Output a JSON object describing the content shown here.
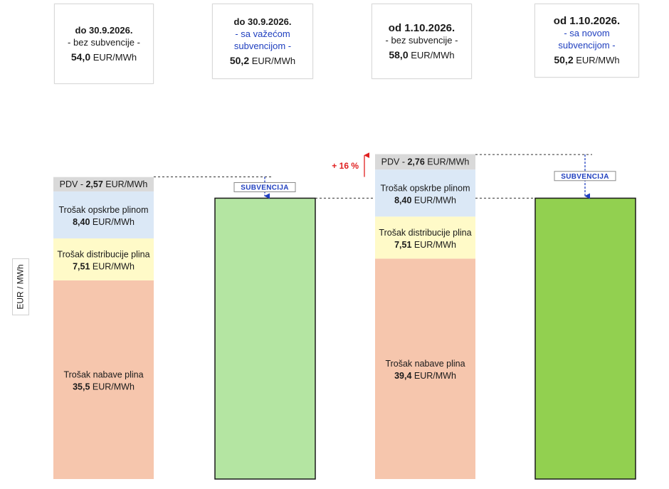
{
  "header": {
    "boxes": [
      {
        "period": "do 30.9.2026.",
        "note": "- bez subvencije -",
        "note_color": "#1a1a1a",
        "value": "54,0",
        "unit": "EUR/MWh"
      },
      {
        "period": "do 30.9.2026.",
        "note": "- sa važećom subvencijom -",
        "note_color": "#1f3fbf",
        "value": "50,2",
        "unit": "EUR/MWh"
      },
      {
        "period": "od 1.10.2026.",
        "note": "- bez subvencije -",
        "note_color": "#1a1a1a",
        "value": "58,0",
        "unit": "EUR/MWh"
      },
      {
        "period": "od 1.10.2026.",
        "note": "- sa novom subvencijom -",
        "note_color": "#1f3fbf",
        "value": "50,2",
        "unit": "EUR/MWh"
      }
    ]
  },
  "chart_data": {
    "type": "bar",
    "stacked": true,
    "ylabel": "EUR / MWh",
    "unit": "EUR/MWh",
    "categories": [
      "do 30.9.2026. - bez subvencije -",
      "do 30.9.2026. - sa važećom subvencijom -",
      "od 1.10.2026. - bez subvencije -",
      "od 1.10.2026. - sa novom subvencijom -"
    ],
    "bars": [
      {
        "total": 54.0,
        "segments": [
          {
            "name": "Trošak nabave plina",
            "value": 35.5,
            "display": "35,5",
            "color": "#f6c6ad"
          },
          {
            "name": "Trošak distribucije plina",
            "value": 7.51,
            "display": "7,51",
            "color": "#fffac8"
          },
          {
            "name": "Trošak opskrbe plinom",
            "value": 8.4,
            "display": "8,40",
            "color": "#dbe8f6"
          },
          {
            "name": "PDV",
            "value": 2.57,
            "display": "2,57",
            "color": "#d9d9d9"
          }
        ]
      },
      {
        "total": 50.2,
        "segments": [],
        "fill": "#b4e5a2",
        "subsidy_label": "SUBVENCIJA"
      },
      {
        "total": 58.0,
        "segments": [
          {
            "name": "Trošak nabave plina",
            "value": 39.4,
            "display": "39,4",
            "color": "#f6c6ad"
          },
          {
            "name": "Trošak distribucije plina",
            "value": 7.51,
            "display": "7,51",
            "color": "#fffac8"
          },
          {
            "name": "Trošak opskrbe plinom",
            "value": 8.4,
            "display": "8,40",
            "color": "#dbe8f6"
          },
          {
            "name": "PDV",
            "value": 2.76,
            "display": "2,76",
            "color": "#d9d9d9"
          }
        ]
      },
      {
        "total": 50.2,
        "segments": [],
        "fill": "#92d050",
        "subsidy_label": "SUBVENCIJA"
      }
    ],
    "change_annotation": "+ 16 %",
    "change_color": "#e02020"
  }
}
